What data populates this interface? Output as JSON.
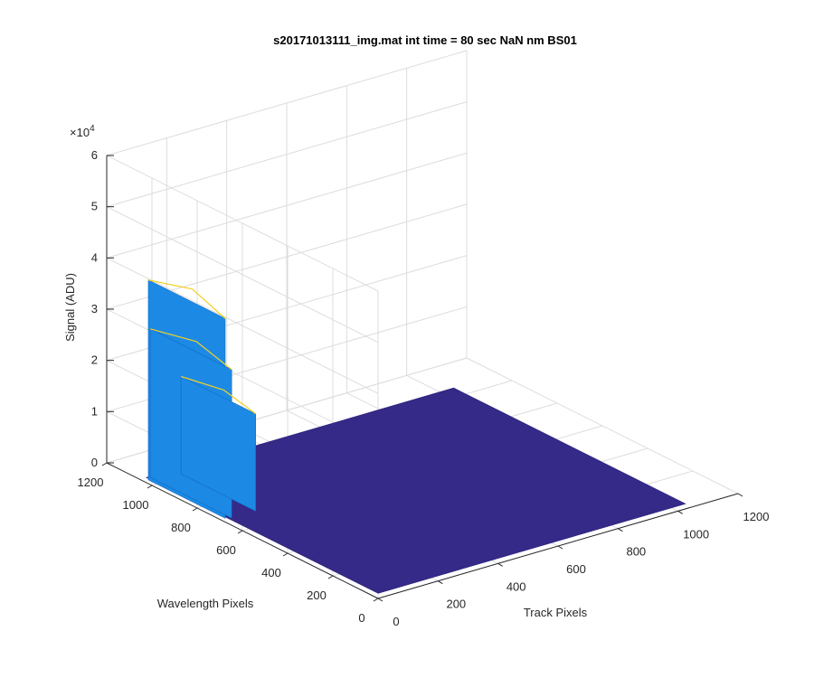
{
  "chart_data": {
    "type": "surface",
    "title": "s20171013111_img.mat int time = 80 sec  NaN nm BS01",
    "xlabel": "Track Pixels",
    "ylabel": "Wavelength Pixels",
    "zlabel": "Signal (ADU)",
    "z_exponent_label": "×10",
    "z_exponent_power": "4",
    "xlim": [
      0,
      1200
    ],
    "ylim": [
      0,
      1200
    ],
    "zlim": [
      0,
      60000
    ],
    "x_ticks": [
      "0",
      "200",
      "400",
      "600",
      "800",
      "1000",
      "1200"
    ],
    "y_ticks": [
      "0",
      "200",
      "400",
      "600",
      "800",
      "1000",
      "1200"
    ],
    "z_ticks": [
      "0",
      "1",
      "2",
      "3",
      "4",
      "5",
      "6"
    ],
    "grid": true,
    "colormap": "parula",
    "colors": {
      "low": "#352a87",
      "mid": "#1c8ae5",
      "high": "#f2d024"
    },
    "surface_extent": {
      "x": [
        1,
        1024
      ],
      "y": [
        1,
        1024
      ]
    },
    "baseline_signal": 1000,
    "peaks": [
      {
        "x": 6,
        "y": [
          660,
          1000
        ],
        "signal": 40000
      },
      {
        "x": 20,
        "y": [
          650,
          1010
        ],
        "signal": 30000
      },
      {
        "x": 100,
        "y": [
          650,
          980
        ],
        "signal": 20000
      }
    ]
  }
}
